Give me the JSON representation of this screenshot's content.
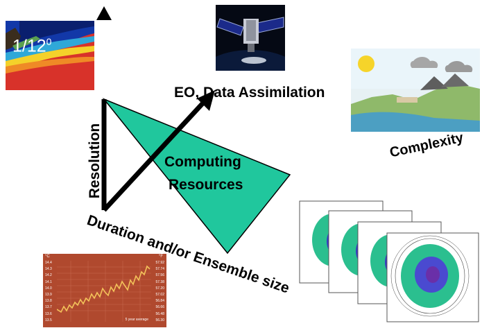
{
  "diagram": {
    "resolution_value": "1/12",
    "resolution_superscript": "0",
    "axes": {
      "vertical": "Resolution",
      "diagonal_up": "EO, Data Assimilation",
      "diagonal_down": "Duration and/or Ensemble size",
      "right": "Complexity"
    },
    "center_label_line1": "Computing",
    "center_label_line2": "Resources"
  },
  "temperature_chart": {
    "left_unit": "°C",
    "right_unit": "°F",
    "left_ticks": [
      "14.4",
      "14.3",
      "14.2",
      "14.1",
      "14.0",
      "13.9",
      "13.8",
      "13.7",
      "13.6",
      "13.5"
    ],
    "right_ticks": [
      "57.92",
      "57.74",
      "57.56",
      "57.38",
      "57.20",
      "57.02",
      "56.84",
      "56.66",
      "56.48",
      "56.30"
    ],
    "legend": "5 year average"
  },
  "colors": {
    "triangle_fill": "#20c79d",
    "arrow": "#000000",
    "chart_bg": "#b0492e",
    "chart_line": "#f3c25a"
  }
}
